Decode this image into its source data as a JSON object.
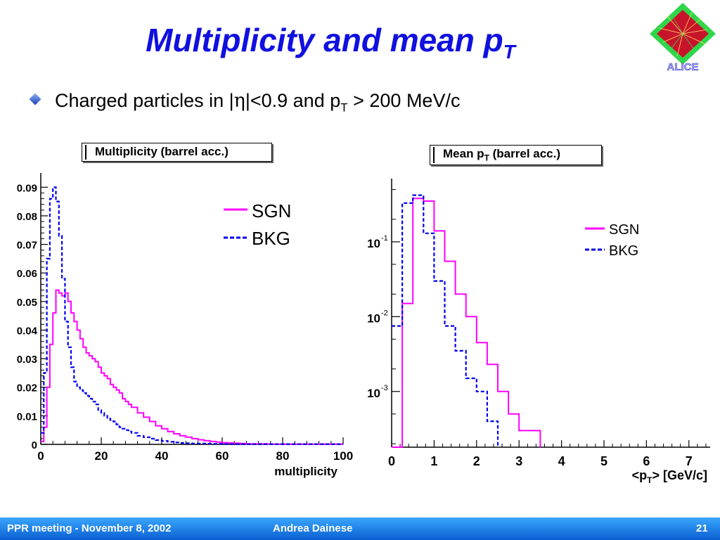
{
  "slide": {
    "title_main": "Multiplicity and mean p",
    "title_sub": "T",
    "bullet_pre": "Charged particles in |",
    "bullet_eta": "η",
    "bullet_mid": "|<0.9 and p",
    "bullet_sub": "T",
    "bullet_post": " > 200 MeV/c",
    "logo_text": "ALICE"
  },
  "footer": {
    "meeting": "PPR meeting - November 8, 2002",
    "author": "Andrea Dainese",
    "page": "21"
  },
  "colors": {
    "sgn": "#ff00ff",
    "bkg": "#0000ee",
    "title": "#1010e0",
    "footer": "#1b7fe8"
  },
  "chart_data": [
    {
      "type": "line",
      "title": "Multiplicity (barrel acc.)",
      "xlabel": "multiplicity",
      "ylabel": "",
      "xlim": [
        0,
        100
      ],
      "ylim": [
        0,
        0.095
      ],
      "x_ticks": [
        "0",
        "20",
        "40",
        "60",
        "80",
        "100"
      ],
      "y_ticks": [
        "0",
        "0.01",
        "0.02",
        "0.03",
        "0.04",
        "0.05",
        "0.06",
        "0.07",
        "0.08",
        "0.09"
      ],
      "legend": {
        "placement": "top-right",
        "entries": [
          "SGN",
          "BKG"
        ]
      },
      "series": [
        {
          "name": "SGN",
          "x": [
            0,
            1,
            2,
            3,
            4,
            5,
            6,
            7,
            8,
            9,
            10,
            11,
            12,
            13,
            14,
            15,
            16,
            17,
            18,
            19,
            20,
            21,
            22,
            23,
            24,
            25,
            26,
            27,
            28,
            29,
            30,
            32,
            34,
            36,
            38,
            40,
            42,
            44,
            46,
            48,
            50,
            52,
            54,
            56,
            58,
            60,
            62,
            64,
            66,
            68,
            70,
            75,
            80,
            85,
            90,
            95,
            100
          ],
          "values": [
            0.001,
            0.006,
            0.02,
            0.035,
            0.046,
            0.054,
            0.053,
            0.052,
            0.053,
            0.05,
            0.046,
            0.043,
            0.04,
            0.037,
            0.034,
            0.032,
            0.031,
            0.03,
            0.029,
            0.027,
            0.025,
            0.024,
            0.023,
            0.021,
            0.02,
            0.019,
            0.018,
            0.016,
            0.015,
            0.014,
            0.013,
            0.011,
            0.0095,
            0.008,
            0.0065,
            0.0055,
            0.0045,
            0.0037,
            0.003,
            0.0025,
            0.002,
            0.0016,
            0.0013,
            0.001,
            0.0008,
            0.0006,
            0.0005,
            0.0004,
            0.0003,
            0.0002,
            0.0002,
            0.0001,
            0.0001,
            0.0001,
            0.0001,
            0.0001,
            0.0001
          ]
        },
        {
          "name": "BKG",
          "x": [
            0,
            1,
            2,
            3,
            4,
            5,
            6,
            7,
            8,
            9,
            10,
            11,
            12,
            13,
            14,
            15,
            16,
            17,
            18,
            19,
            20,
            21,
            22,
            23,
            24,
            25,
            26,
            27,
            28,
            29,
            30,
            32,
            34,
            36,
            38,
            40,
            42,
            44,
            46,
            48,
            50,
            55,
            60,
            70,
            80,
            90,
            100
          ],
          "values": [
            0.004,
            0.025,
            0.065,
            0.086,
            0.09,
            0.085,
            0.073,
            0.058,
            0.043,
            0.034,
            0.027,
            0.022,
            0.02,
            0.019,
            0.018,
            0.017,
            0.016,
            0.015,
            0.014,
            0.012,
            0.011,
            0.01,
            0.009,
            0.0085,
            0.008,
            0.007,
            0.006,
            0.0055,
            0.005,
            0.0045,
            0.004,
            0.003,
            0.0025,
            0.002,
            0.0015,
            0.0012,
            0.0009,
            0.0007,
            0.0005,
            0.0004,
            0.0003,
            0.0002,
            0.0001,
            0.0001,
            0.0001,
            0.0001,
            0.0001
          ]
        }
      ]
    },
    {
      "type": "line",
      "title": "Mean p",
      "title_sub": "T",
      "title_post": " (barrel acc.)",
      "xlabel": "<p",
      "xlabel_sub": "T",
      "xlabel_post": "> [GeV/c]",
      "ylabel": "",
      "xlim": [
        0,
        7.5
      ],
      "ylim": [
        0.00018,
        0.7
      ],
      "log_y": true,
      "x_ticks": [
        "0",
        "1",
        "2",
        "3",
        "4",
        "5",
        "6",
        "7"
      ],
      "y_ticks": [
        {
          "label": "10",
          "exp": "-1",
          "value": 0.1
        },
        {
          "label": "10",
          "exp": "-2",
          "value": 0.01
        },
        {
          "label": "10",
          "exp": "-3",
          "value": 0.001
        }
      ],
      "legend": {
        "placement": "top-right",
        "entries": [
          "SGN",
          "BKG"
        ]
      },
      "series": [
        {
          "name": "SGN",
          "x": [
            0.0,
            0.25,
            0.5,
            0.75,
            1.0,
            1.25,
            1.5,
            1.75,
            2.0,
            2.25,
            2.5,
            2.75,
            3.0,
            3.25,
            3.5
          ],
          "values": [
            0.00018,
            0.015,
            0.38,
            0.35,
            0.14,
            0.055,
            0.02,
            0.01,
            0.0045,
            0.0023,
            0.001,
            0.0005,
            0.0003,
            0.0003,
            0.00018
          ]
        },
        {
          "name": "BKG",
          "x": [
            0.0,
            0.1,
            0.25,
            0.5,
            0.75,
            1.0,
            1.25,
            1.5,
            1.75,
            2.0,
            2.25,
            2.5
          ],
          "values": [
            0.0075,
            0.0075,
            0.33,
            0.42,
            0.13,
            0.03,
            0.0075,
            0.0035,
            0.0015,
            0.001,
            0.0004,
            0.00018
          ]
        }
      ]
    }
  ]
}
